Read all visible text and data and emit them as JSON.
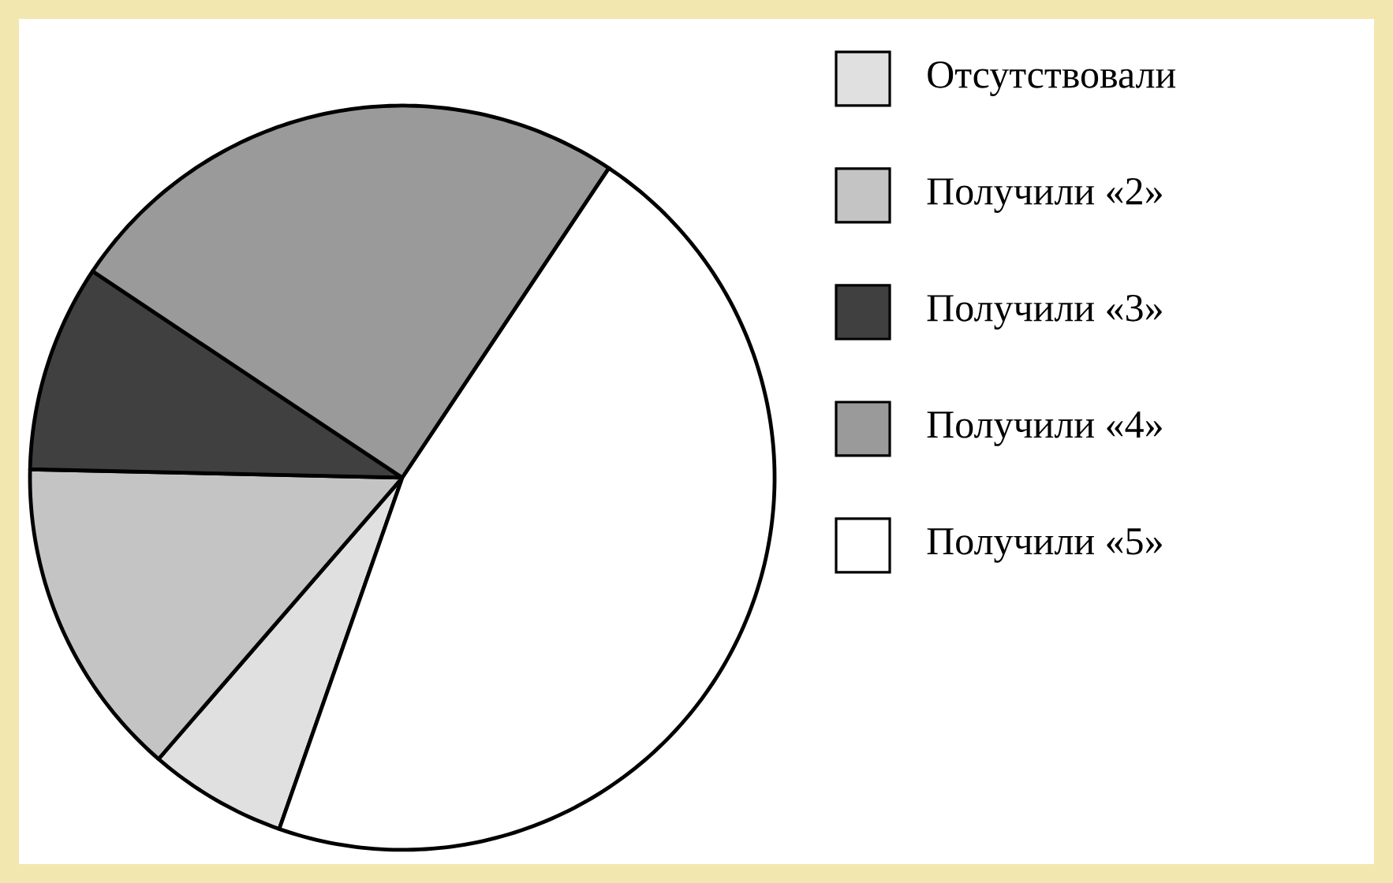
{
  "chart_data": {
    "type": "pie",
    "categories": [
      "Отсутствовали",
      "Получили «2»",
      "Получили «3»",
      "Получили «4»",
      "Получили «5»"
    ],
    "values": [
      6,
      14,
      9,
      25,
      46
    ],
    "colors": [
      "#e0e0e0",
      "#c4c4c4",
      "#404040",
      "#9a9a9a",
      "#ffffff"
    ],
    "legend": "right"
  }
}
